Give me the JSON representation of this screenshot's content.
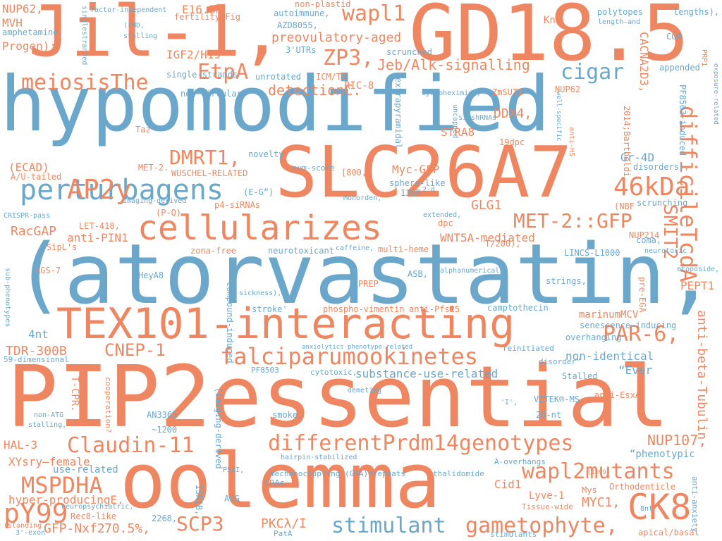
{
  "colors": {
    "orange": "#ee8761",
    "blue": "#6aa7cb"
  },
  "words": [
    {
      "text": "hypomodified",
      "color": "blue"
    },
    {
      "text": "(atorvastatin,",
      "color": "blue"
    },
    {
      "text": "PIP2essential",
      "color": "orange"
    },
    {
      "text": "oolemma",
      "color": "orange"
    },
    {
      "text": "SLC26A7",
      "color": "orange"
    },
    {
      "text": "GD18.5",
      "color": "orange"
    },
    {
      "text": "Jil-1,",
      "color": "orange"
    },
    {
      "text": "TEX101-interacting",
      "color": "orange"
    },
    {
      "text": "cellularizes",
      "color": "orange"
    },
    {
      "text": "perturbagens",
      "color": "blue"
    },
    {
      "text": "differentPrdm14genotypes",
      "color": "orange"
    },
    {
      "text": "falciparumookinetes",
      "color": "orange"
    },
    {
      "text": "Claudin-11",
      "color": "orange"
    },
    {
      "text": "wapl2mutants",
      "color": "orange"
    },
    {
      "text": "stimulant",
      "color": "blue"
    },
    {
      "text": "gametophyte,",
      "color": "orange"
    },
    {
      "text": "CK8",
      "color": "orange"
    },
    {
      "text": "MSPDHA",
      "color": "orange"
    },
    {
      "text": "pY99",
      "color": "orange"
    },
    {
      "text": "SCP3",
      "color": "orange"
    },
    {
      "text": "AP2y",
      "color": "orange"
    },
    {
      "text": "46kDa",
      "color": "orange"
    },
    {
      "text": "MET-2::GFP",
      "color": "orange"
    },
    {
      "text": "wapl1",
      "color": "orange"
    },
    {
      "text": "ZP3,",
      "color": "orange"
    },
    {
      "text": "EtpA",
      "color": "orange"
    },
    {
      "text": "cigar",
      "color": "blue"
    },
    {
      "text": "meiosisThe",
      "color": "orange"
    },
    {
      "text": "DMRT1,",
      "color": "orange"
    },
    {
      "text": "PAR-6,",
      "color": "orange"
    },
    {
      "text": "CNEP-1",
      "color": "orange"
    },
    {
      "text": "difficileTcdA",
      "color": "orange"
    },
    {
      "text": "SMIT2",
      "color": "orange"
    },
    {
      "text": "anti-beta-Tubulin",
      "color": "orange"
    },
    {
      "text": "Jeb/Alk-signalling",
      "color": "orange"
    },
    {
      "text": "detectionC.",
      "color": "orange"
    },
    {
      "text": "preovulatory-aged",
      "color": "orange"
    },
    {
      "text": "IGF2/H19",
      "color": "orange"
    },
    {
      "text": "E16.5m",
      "color": "orange"
    },
    {
      "text": "NUP62,",
      "color": "orange"
    },
    {
      "text": "MVH",
      "color": "orange"
    },
    {
      "text": "Progen);",
      "color": "orange"
    },
    {
      "text": "amphetamine,",
      "color": "blue"
    },
    {
      "text": "singlestranded",
      "color": "blue"
    },
    {
      "text": "factor-independent",
      "color": "blue"
    },
    {
      "text": "(rMD,",
      "color": "blue"
    },
    {
      "text": "stalling",
      "color": "blue"
    },
    {
      "text": "fertility.Fig",
      "color": "orange"
    },
    {
      "text": "autoimmune,",
      "color": "blue"
    },
    {
      "text": "AZD8055,",
      "color": "blue"
    },
    {
      "text": "non-plastid",
      "color": "orange"
    },
    {
      "text": "single-strands",
      "color": "blue"
    },
    {
      "text": "3'UTRs",
      "color": "blue"
    },
    {
      "text": "scrunched",
      "color": "blue"
    },
    {
      "text": "Knk",
      "color": "orange"
    },
    {
      "text": "polytopes",
      "color": "blue"
    },
    {
      "text": "length—and",
      "color": "blue"
    },
    {
      "text": "lengths),",
      "color": "blue"
    },
    {
      "text": "CGA",
      "color": "blue"
    },
    {
      "text": "CACNA2D3,",
      "color": "orange"
    },
    {
      "text": "appended",
      "color": "blue"
    },
    {
      "text": "PRP1",
      "color": "orange"
    },
    {
      "text": "exposure-related",
      "color": "blue"
    },
    {
      "text": "unrotated",
      "color": "blue"
    },
    {
      "text": "ICM/TE",
      "color": "orange"
    },
    {
      "text": "RIC-8",
      "color": "orange"
    },
    {
      "text": "non-circular",
      "color": "blue"
    },
    {
      "text": "extrapyramidal",
      "color": "blue"
    },
    {
      "text": "cycloheximide,",
      "color": "blue"
    },
    {
      "text": "ZmSUT1",
      "color": "orange"
    },
    {
      "text": "NUP62",
      "color": "orange"
    },
    {
      "text": "2014;Bartholdi",
      "color": "orange"
    },
    {
      "text": "PF8503-induced",
      "color": "blue"
    },
    {
      "text": "DDX4,",
      "color": "orange"
    },
    {
      "text": "si/shRNAs",
      "color": "blue"
    },
    {
      "text": "uncapped",
      "color": "blue"
    },
    {
      "text": "STRA8",
      "color": "orange"
    },
    {
      "text": "Taz",
      "color": "orange"
    },
    {
      "text": "well-specific",
      "color": "blue"
    },
    {
      "text": "anti-H5",
      "color": "orange"
    },
    {
      "text": "19dpc",
      "color": "orange"
    },
    {
      "text": "Gr-4D",
      "color": "blue"
    },
    {
      "text": "disorders),",
      "color": "blue"
    },
    {
      "text": "MET-2.",
      "color": "orange"
    },
    {
      "text": "WUSCHEL-RELATED",
      "color": "orange"
    },
    {
      "text": "novelty-",
      "color": "blue"
    },
    {
      "text": "(ECAD)",
      "color": "orange"
    },
    {
      "text": "A/U-tailed",
      "color": "orange"
    },
    {
      "text": "sum-score",
      "color": "blue"
    },
    {
      "text": "[800,",
      "color": "orange"
    },
    {
      "text": "Myc-GFP",
      "color": "orange"
    },
    {
      "text": "sphere-like",
      "color": "blue"
    },
    {
      "text": "13GB",
      "color": "blue"
    },
    {
      "text": "2-d",
      "color": "blue"
    },
    {
      "text": "(E-G”)",
      "color": "blue"
    },
    {
      "text": "imaging-derived",
      "color": "blue"
    },
    {
      "text": "Monorden,",
      "color": "blue"
    },
    {
      "text": "p4-siRNAs",
      "color": "orange"
    },
    {
      "text": "(P-Q)",
      "color": "orange"
    },
    {
      "text": "CRISPR-pass",
      "color": "blue"
    },
    {
      "text": "(NBF",
      "color": "orange"
    },
    {
      "text": "scrunching",
      "color": "blue"
    },
    {
      "text": "extended,",
      "color": "blue"
    },
    {
      "text": "GLG1",
      "color": "orange"
    },
    {
      "text": "dpc",
      "color": "orange"
    },
    {
      "text": "RacGAP",
      "color": "orange"
    },
    {
      "text": "anti-PIN1",
      "color": "orange"
    },
    {
      "text": "WNT5A-mediated",
      "color": "orange"
    },
    {
      "text": "coma,",
      "color": "blue"
    },
    {
      "text": "NUP214",
      "color": "orange"
    },
    {
      "text": "T/200),",
      "color": "orange"
    },
    {
      "text": "SipL's",
      "color": "orange"
    },
    {
      "text": "LET-418,",
      "color": "orange"
    },
    {
      "text": "zona-free",
      "color": "orange"
    },
    {
      "text": "neurotoxicant",
      "color": "blue"
    },
    {
      "text": "caffeine,",
      "color": "blue"
    },
    {
      "text": "multi-heme",
      "color": "orange"
    },
    {
      "text": "LINCS-L1000",
      "color": "blue"
    },
    {
      "text": "neurotoxic",
      "color": "blue"
    },
    {
      "text": "RGS-7",
      "color": "orange"
    },
    {
      "text": "sub-phenotypes",
      "color": "blue"
    },
    {
      "text": "HeyA8",
      "color": "blue"
    },
    {
      "text": "1,309",
      "color": "blue"
    },
    {
      "text": "sickness),",
      "color": "blue"
    },
    {
      "text": "ASB,",
      "color": "blue"
    },
    {
      "text": "alphanumerically",
      "color": "blue"
    },
    {
      "text": "strings,",
      "color": "blue"
    },
    {
      "text": "pre-EGA",
      "color": "orange"
    },
    {
      "text": "etoposide,",
      "color": "blue"
    },
    {
      "text": "PEPT1",
      "color": "orange"
    },
    {
      "text": "PREP",
      "color": "orange"
    },
    {
      "text": "compound-induced",
      "color": "blue"
    },
    {
      "text": "stroke'",
      "color": "blue"
    },
    {
      "text": "phospho-vimentin",
      "color": "orange"
    },
    {
      "text": "anti-Pfs25",
      "color": "orange"
    },
    {
      "text": "camptothecin",
      "color": "blue"
    },
    {
      "text": "marinumMCV",
      "color": "orange"
    },
    {
      "text": "senescence-inducing",
      "color": "blue"
    },
    {
      "text": "4nt",
      "color": "blue"
    },
    {
      "text": "overhanging",
      "color": "blue"
    },
    {
      "text": "TDR-300B",
      "color": "orange"
    },
    {
      "text": "59-dimensional",
      "color": "blue"
    },
    {
      "text": "anxiolytics phenotype-related",
      "color": "blue"
    },
    {
      "text": "reinitiated",
      "color": "blue"
    },
    {
      "text": "non-identical",
      "color": "blue"
    },
    {
      "text": "PF8503",
      "color": "blue"
    },
    {
      "text": "cytotoxic,",
      "color": "blue"
    },
    {
      "text": "substance-use-related",
      "color": "blue"
    },
    {
      "text": "disorder”",
      "color": "blue"
    },
    {
      "text": "“Ever",
      "color": "blue"
    },
    {
      "text": "Stalled",
      "color": "blue"
    },
    {
      "text": "T-CPR.",
      "color": "orange"
    },
    {
      "text": "cooperation?",
      "color": "orange"
    },
    {
      "text": "demeting",
      "color": "blue"
    },
    {
      "text": "(imaging-derived",
      "color": "blue"
    },
    {
      "text": "VITEK®-MS",
      "color": "blue"
    },
    {
      "text": "anti-EsxA",
      "color": "orange"
    },
    {
      "text": "'I',",
      "color": "blue"
    },
    {
      "text": "non-ATG",
      "color": "blue"
    },
    {
      "text": "stalling,",
      "color": "blue"
    },
    {
      "text": "AN3365",
      "color": "blue"
    },
    {
      "text": "smoke,",
      "color": "blue"
    },
    {
      "text": "26-nt",
      "color": "blue"
    },
    {
      "text": "~1200",
      "color": "blue"
    },
    {
      "text": "NUP107,",
      "color": "orange"
    },
    {
      "text": "HAL-3",
      "color": "orange"
    },
    {
      "text": "XYsry–female",
      "color": "orange"
    },
    {
      "text": "hairpin-stabilized",
      "color": "blue"
    },
    {
      "text": "“phenotypic",
      "color": "blue"
    },
    {
      "text": "use-related",
      "color": "blue"
    },
    {
      "text": "mechanocoupling (GAA)nrepeats",
      "color": "blue"
    },
    {
      "text": "thalidomide",
      "color": "blue"
    },
    {
      "text": "A-overhangs",
      "color": "blue"
    },
    {
      "text": "(1099",
      "color": "orange"
    },
    {
      "text": "PSQI,",
      "color": "blue"
    },
    {
      "text": "Cid1",
      "color": "orange"
    },
    {
      "text": "Lyve-1",
      "color": "orange"
    },
    {
      "text": "Orthodenticle",
      "color": "orange"
    },
    {
      "text": "anti-anxiety",
      "color": "blue"
    },
    {
      "text": "hyper-producingE.",
      "color": "orange"
    },
    {
      "text": "ISRIB,",
      "color": "blue"
    },
    {
      "text": "LRAs",
      "color": "blue"
    },
    {
      "text": "Mys",
      "color": "orange"
    },
    {
      "text": "MYC1,",
      "color": "orange"
    },
    {
      "text": "AGG",
      "color": "blue"
    },
    {
      "text": "Tissue-wide",
      "color": "orange"
    },
    {
      "text": "neuropsychiatric,",
      "color": "blue"
    },
    {
      "text": "8nt",
      "color": "blue"
    },
    {
      "text": "GFP-Nxf2",
      "color": "orange"
    },
    {
      "text": "70.5%,",
      "color": "orange"
    },
    {
      "text": "Rec8-like",
      "color": "orange"
    },
    {
      "text": "2268,",
      "color": "blue"
    },
    {
      "text": "PKCλ/I",
      "color": "orange"
    },
    {
      "text": "PatA",
      "color": "blue"
    },
    {
      "text": "stimulants",
      "color": "blue"
    },
    {
      "text": "apical/basal",
      "color": "orange"
    },
    {
      "text": "(standing",
      "color": "orange"
    },
    {
      "text": "3'-exon",
      "color": "blue"
    }
  ]
}
